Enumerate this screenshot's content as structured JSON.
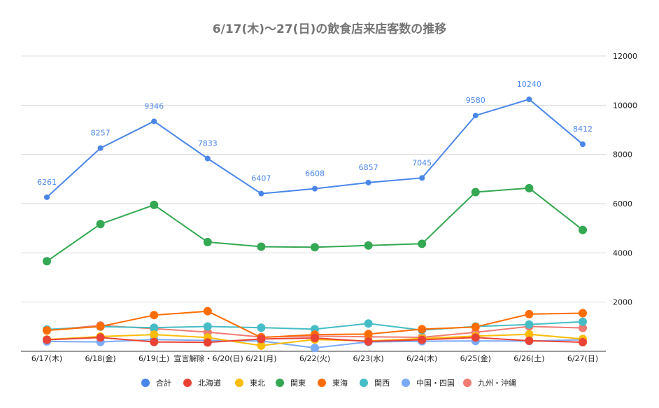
{
  "chart_data": {
    "type": "line",
    "title": "6/17(木)〜27(日)の飲食店来店客数の推移",
    "xlabel": "",
    "ylabel": "",
    "ylim": [
      0,
      12000
    ],
    "yticks": [
      2000,
      4000,
      6000,
      8000,
      10000,
      12000
    ],
    "y_axis_side": "right",
    "grid": true,
    "legend_position": "bottom",
    "categories": [
      "6/17(木)",
      "6/18(金)",
      "6/19(土)",
      "宣言解除・6/20(日)",
      "6/21(月)",
      "6/22(火)",
      "6/23(水)",
      "6/24(木)",
      "6/25(金)",
      "6/26(土)",
      "6/27(日)"
    ],
    "series": [
      {
        "name": "合計",
        "color": "#4a86e8",
        "values": [
          6261,
          8257,
          9346,
          7833,
          6407,
          6608,
          6857,
          7045,
          9580,
          10240,
          8412
        ],
        "show_labels": true
      },
      {
        "name": "北海道",
        "color": "#ea4335",
        "values": [
          470,
          560,
          380,
          360,
          500,
          540,
          400,
          470,
          560,
          430,
          370
        ],
        "show_labels": false
      },
      {
        "name": "東北",
        "color": "#fbbc04",
        "values": [
          480,
          600,
          680,
          560,
          230,
          480,
          420,
          520,
          620,
          690,
          500
        ],
        "show_labels": false
      },
      {
        "name": "関東",
        "color": "#34a853",
        "values": [
          3660,
          5170,
          5950,
          4440,
          4250,
          4230,
          4300,
          4370,
          6470,
          6630,
          4930
        ],
        "show_labels": false
      },
      {
        "name": "東海",
        "color": "#ff6d01",
        "values": [
          850,
          1010,
          1470,
          1630,
          560,
          680,
          700,
          900,
          990,
          1510,
          1550
        ],
        "show_labels": false
      },
      {
        "name": "関西",
        "color": "#46bdc6",
        "values": [
          890,
          1000,
          960,
          1010,
          960,
          900,
          1130,
          860,
          1010,
          1090,
          1200
        ],
        "show_labels": false
      },
      {
        "name": "中国・四国",
        "color": "#7baaf7",
        "values": [
          400,
          380,
          480,
          440,
          420,
          140,
          380,
          410,
          420,
          420,
          470
        ],
        "show_labels": false
      },
      {
        "name": "九州・沖縄",
        "color": "#f07b72",
        "values": [
          860,
          1050,
          920,
          780,
          580,
          620,
          590,
          570,
          770,
          1010,
          950
        ],
        "show_labels": false
      }
    ]
  }
}
